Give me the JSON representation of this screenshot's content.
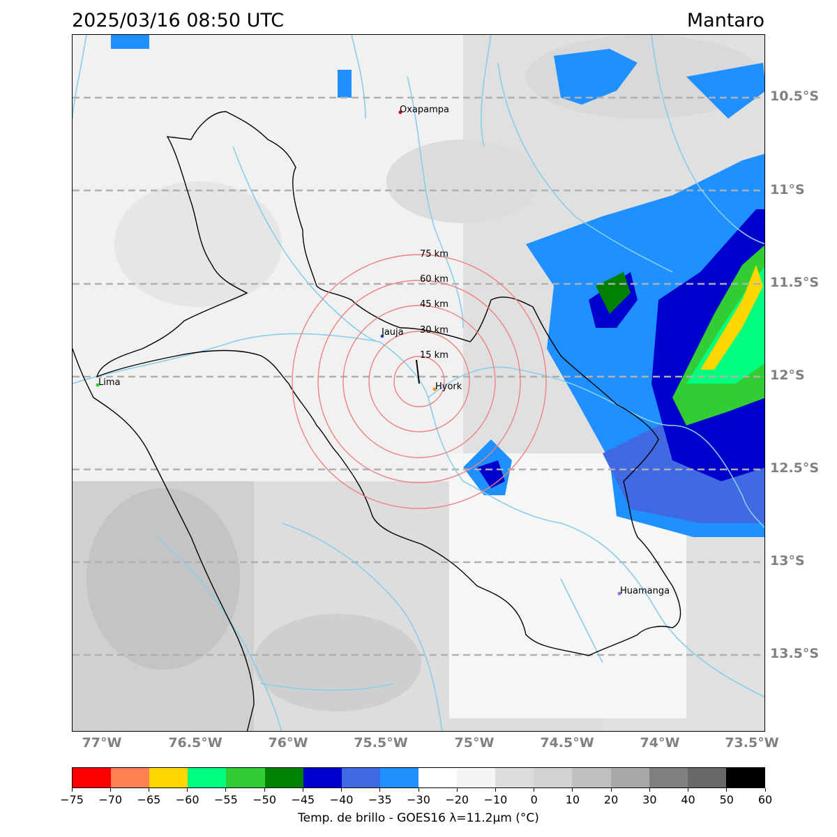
{
  "header": {
    "datetime": "2025/03/16 08:50 UTC",
    "region": "Mantaro"
  },
  "map": {
    "lat_labels": [
      "10.5°S",
      "11°S",
      "11.5°S",
      "12°S",
      "12.5°S",
      "13°S",
      "13.5°S"
    ],
    "lon_labels": [
      "77°W",
      "76.5°W",
      "76°W",
      "75.5°W",
      "75°W",
      "74.5°W",
      "74°W",
      "73.5°W"
    ],
    "range_rings": [
      "15 km",
      "30 km",
      "45 km",
      "60 km",
      "75 km"
    ],
    "cities": {
      "oxapampa": "Oxapampa",
      "jauja": "Jauja",
      "hyork": "Hyork",
      "lima": "Lima",
      "huamanga": "Huamanga"
    },
    "colors": {
      "gridline": "#b0b0b0",
      "ring": "#f08080",
      "river": "#87ceeb",
      "basin_outline": "#000000"
    }
  },
  "colorbar": {
    "title": "Temp. de brillo - GOES16 λ=11.2μm (°C)",
    "ticks": [
      "−75",
      "−70",
      "−65",
      "−60",
      "−55",
      "−50",
      "−45",
      "−40",
      "−35",
      "−30",
      "−20",
      "−10",
      "0",
      "10",
      "20",
      "30",
      "40",
      "50",
      "60"
    ],
    "colors": [
      "#ff0000",
      "#ff7f50",
      "#ffd700",
      "#00ff7f",
      "#32cd32",
      "#008000",
      "#0000cd",
      "#4169e1",
      "#1e90ff",
      "#ffffff",
      "#f5f5f5",
      "#dcdcdc",
      "#d3d3d3",
      "#c0c0c0",
      "#a9a9a9",
      "#808080",
      "#696969",
      "#000000"
    ]
  }
}
